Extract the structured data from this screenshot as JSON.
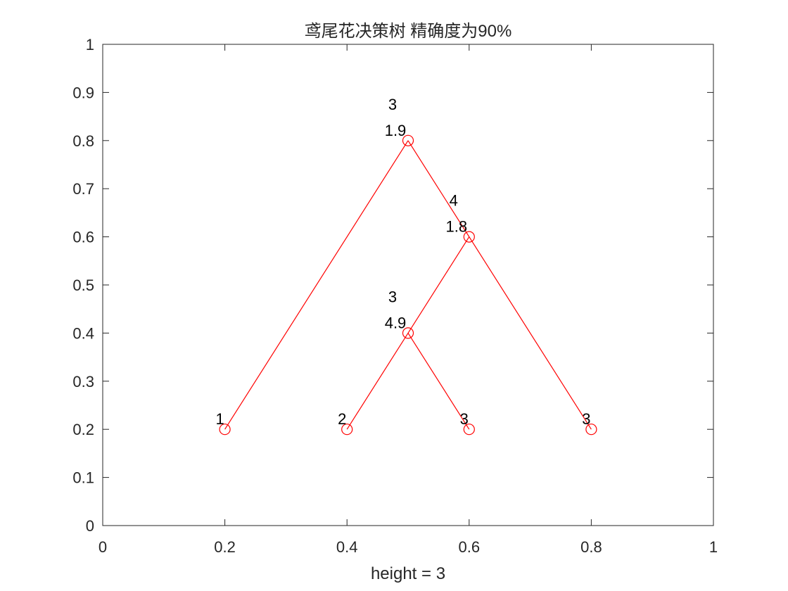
{
  "chart_data": {
    "type": "scatter",
    "title": "鸢尾花决策树  精确度为90%",
    "xlabel": "height = 3",
    "ylabel": "",
    "xlim": [
      0,
      1
    ],
    "ylim": [
      0,
      1
    ],
    "xticks": [
      "0",
      "0.2",
      "0.4",
      "0.6",
      "0.8",
      "1"
    ],
    "yticks": [
      "0",
      "0.1",
      "0.2",
      "0.3",
      "0.4",
      "0.5",
      "0.6",
      "0.7",
      "0.8",
      "0.9",
      "1"
    ],
    "grid": false,
    "line_color": "#ff0000",
    "nodes": [
      {
        "x": 0.5,
        "y": 0.8,
        "feature": "3",
        "threshold": "1.9"
      },
      {
        "x": 0.6,
        "y": 0.6,
        "feature": "4",
        "threshold": "1.8"
      },
      {
        "x": 0.5,
        "y": 0.4,
        "feature": "3",
        "threshold": "4.9"
      },
      {
        "x": 0.2,
        "y": 0.2,
        "class": "1"
      },
      {
        "x": 0.4,
        "y": 0.2,
        "class": "2"
      },
      {
        "x": 0.6,
        "y": 0.2,
        "class": "3"
      },
      {
        "x": 0.8,
        "y": 0.2,
        "class": "3"
      }
    ],
    "edges": [
      [
        0,
        3
      ],
      [
        0,
        1
      ],
      [
        1,
        2
      ],
      [
        1,
        6
      ],
      [
        2,
        4
      ],
      [
        2,
        5
      ]
    ]
  }
}
